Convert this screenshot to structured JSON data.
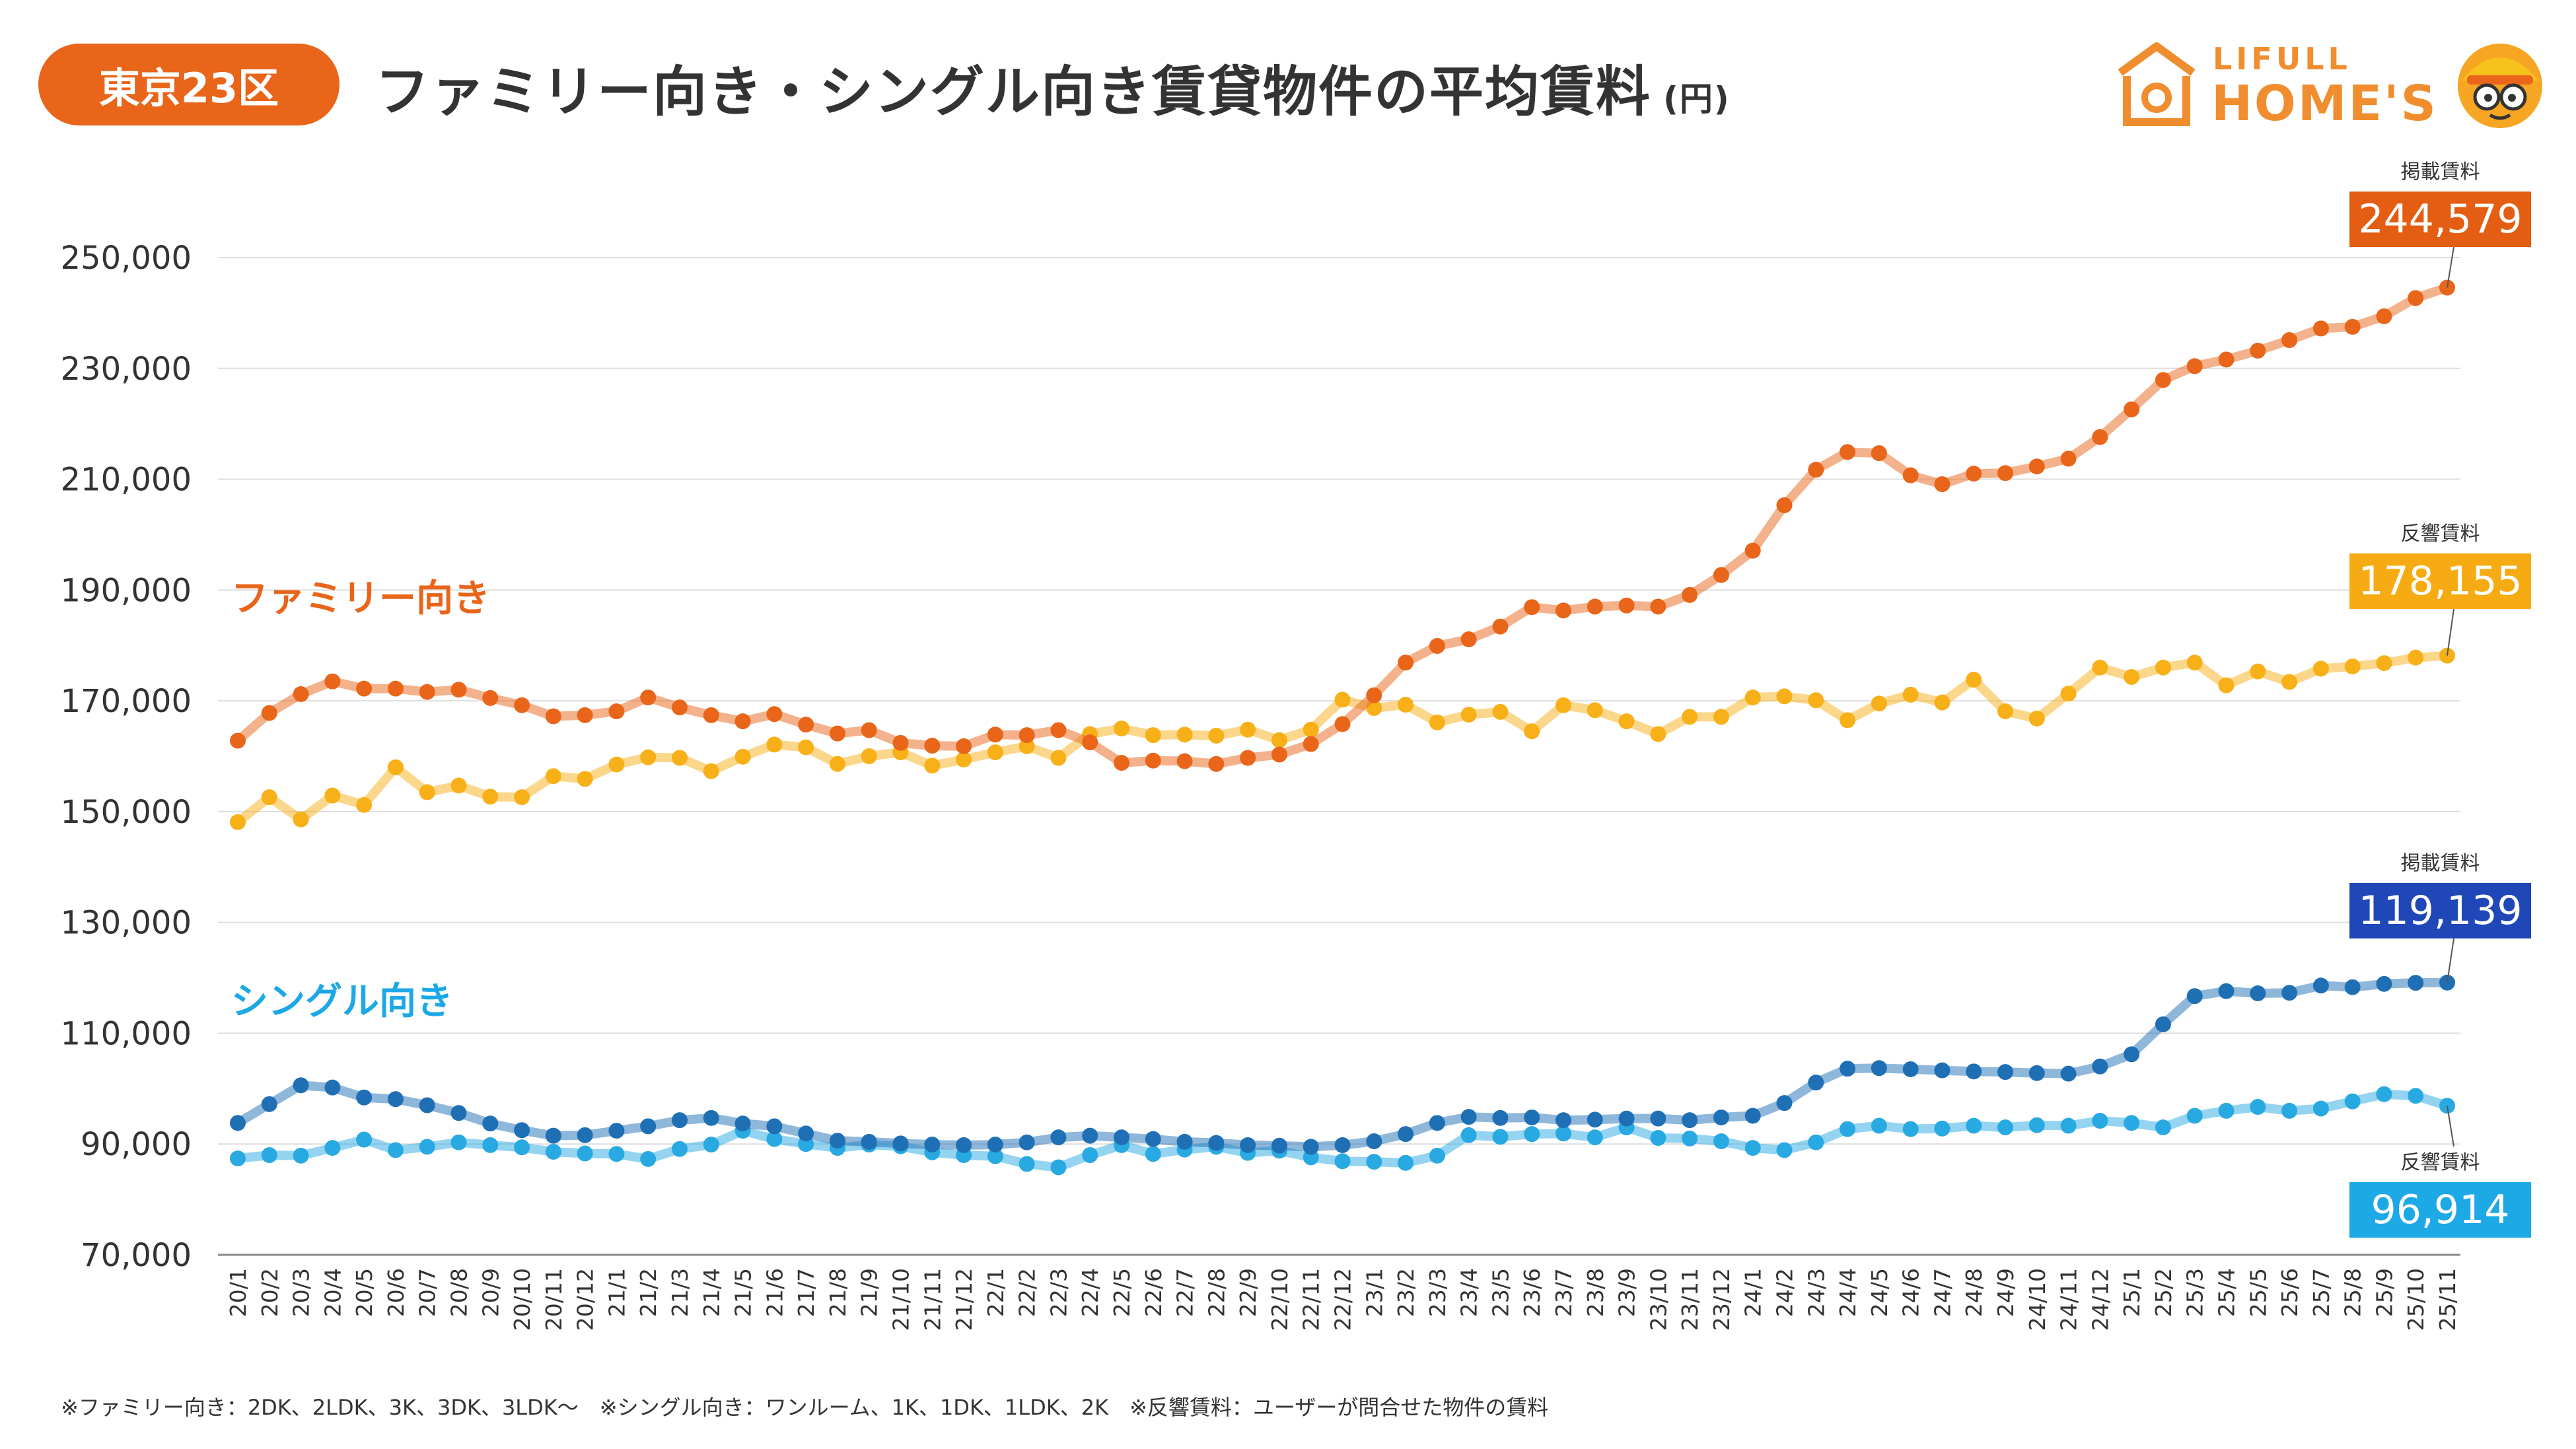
{
  "header": {
    "region": "東京23区",
    "title": "ファミリー向き・シングル向き賃貸物件の平均賃料",
    "unit": "(円)"
  },
  "logo": {
    "line1": "LIFULL",
    "line2": "HOME'S"
  },
  "footnote": "※ファミリー向き：2DK、2LDK、3K、3DK、3LDK～　※シングル向き：ワンルーム、1K、1DK、1LDK、2K　※反響賃料：ユーザーが問合せた物件の賃料",
  "colors": {
    "family_listed": "#e8651a",
    "family_inquiry": "#f8b019",
    "single_listed": "#1f6fb5",
    "single_inquiry": "#29a9e1",
    "badge_family_listed": "#e35d12",
    "badge_family_inquiry": "#f7ab12",
    "badge_single_listed": "#1f47b8",
    "badge_single_inquiry": "#1da8e6"
  },
  "chart_data": {
    "type": "line",
    "title": "ファミリー向き・シングル向き賃貸物件の平均賃料",
    "ylabel": "(円)",
    "ylim": [
      70000,
      250000
    ],
    "yticks": [
      "250,000",
      "230,000",
      "210,000",
      "190,000",
      "170,000",
      "150,000",
      "130,000",
      "110,000",
      "90,000",
      "70,000"
    ],
    "grid": true,
    "group_labels": {
      "family": "ファミリー向き",
      "single": "シングル向き"
    },
    "categories": [
      "20/1",
      "20/2",
      "20/3",
      "20/4",
      "20/5",
      "20/6",
      "20/7",
      "20/8",
      "20/9",
      "20/10",
      "20/11",
      "20/12",
      "21/1",
      "21/2",
      "21/3",
      "21/4",
      "21/5",
      "21/6",
      "21/7",
      "21/8",
      "21/9",
      "21/10",
      "21/11",
      "21/12",
      "22/1",
      "22/2",
      "22/3",
      "22/4",
      "22/5",
      "22/6",
      "22/7",
      "22/8",
      "22/9",
      "22/10",
      "22/11",
      "22/12",
      "23/1",
      "23/2",
      "23/3",
      "23/4",
      "23/5",
      "23/6",
      "23/7",
      "23/8",
      "23/9",
      "23/10",
      "23/11",
      "23/12",
      "24/1",
      "24/2",
      "24/3",
      "24/4",
      "24/5",
      "24/6",
      "24/7",
      "24/8",
      "24/9",
      "24/10",
      "24/11",
      "24/12",
      "25/1",
      "25/2",
      "25/3",
      "25/4",
      "25/5",
      "25/6",
      "25/7",
      "25/8",
      "25/9",
      "25/10",
      "25/11"
    ],
    "series": [
      {
        "key": "family_listed",
        "name": "掲載賃料",
        "group": "ファミリー向き",
        "badge_value": "244,579",
        "values": [
          162800,
          167800,
          171200,
          173500,
          172200,
          172200,
          171600,
          172000,
          170500,
          169200,
          167200,
          167400,
          168100,
          170600,
          168800,
          167400,
          166300,
          167600,
          165700,
          164100,
          164700,
          162400,
          161900,
          161800,
          163900,
          163800,
          164700,
          162500,
          158800,
          159200,
          159100,
          158600,
          159700,
          160300,
          162200,
          165800,
          171000,
          176900,
          179900,
          181100,
          183400,
          186900,
          186300,
          187000,
          187200,
          187000,
          189100,
          192700,
          197100,
          205300,
          211700,
          214900,
          214700,
          210700,
          209100,
          211000,
          211100,
          212300,
          213700,
          217600,
          222600,
          227900,
          230400,
          231600,
          233200,
          235100,
          237200,
          237500,
          239400,
          242700,
          244579
        ]
      },
      {
        "key": "family_inquiry",
        "name": "反響賃料",
        "group": "ファミリー向き",
        "badge_value": "178,155",
        "values": [
          148100,
          152600,
          148600,
          152900,
          151200,
          158000,
          153500,
          154700,
          152700,
          152600,
          156400,
          155900,
          158500,
          159800,
          159700,
          157300,
          159900,
          162100,
          161600,
          158600,
          160000,
          160700,
          158300,
          159400,
          160700,
          161800,
          159700,
          164000,
          165000,
          163800,
          163900,
          163700,
          164800,
          162900,
          164800,
          170200,
          168700,
          169300,
          166100,
          167500,
          168000,
          164500,
          169200,
          168300,
          166300,
          164000,
          167100,
          167100,
          170600,
          170800,
          170100,
          166500,
          169500,
          171100,
          169700,
          173800,
          168100,
          166800,
          171300,
          176000,
          174300,
          176000,
          176900,
          172800,
          175300,
          173400,
          175800,
          176200,
          176800,
          177800,
          178155
        ]
      },
      {
        "key": "single_listed",
        "name": "掲載賃料",
        "group": "シングル向き",
        "badge_value": "119,139",
        "values": [
          93800,
          97200,
          100600,
          100200,
          98400,
          98100,
          97000,
          95600,
          93700,
          92500,
          91500,
          91600,
          92400,
          93200,
          94300,
          94700,
          93700,
          93200,
          91900,
          90600,
          90400,
          90100,
          89900,
          89800,
          89900,
          90300,
          91200,
          91500,
          91200,
          90900,
          90400,
          90200,
          89800,
          89700,
          89500,
          89800,
          90500,
          91800,
          93800,
          94900,
          94700,
          94800,
          94300,
          94400,
          94600,
          94600,
          94300,
          94800,
          95100,
          97400,
          101100,
          103600,
          103700,
          103500,
          103300,
          103100,
          103000,
          102800,
          102700,
          104000,
          106200,
          111600,
          116700,
          117600,
          117200,
          117300,
          118600,
          118300,
          118900,
          119100,
          119139
        ]
      },
      {
        "key": "single_inquiry",
        "name": "反響賃料",
        "group": "シングル向き",
        "badge_value": "96,914",
        "values": [
          87400,
          88000,
          87900,
          89300,
          90800,
          88900,
          89500,
          90300,
          89800,
          89400,
          88600,
          88300,
          88200,
          87300,
          89100,
          89900,
          92400,
          90900,
          90000,
          89300,
          89900,
          89600,
          88500,
          88000,
          87800,
          86400,
          85800,
          88000,
          89800,
          88200,
          89000,
          89500,
          88400,
          88800,
          87600,
          86900,
          86800,
          86600,
          87900,
          91600,
          91300,
          91800,
          91900,
          91200,
          93000,
          91100,
          91000,
          90500,
          89300,
          88900,
          90300,
          92700,
          93300,
          92700,
          92800,
          93300,
          93000,
          93400,
          93300,
          94200,
          93800,
          93000,
          95100,
          96000,
          96700,
          96000,
          96400,
          97700,
          99000,
          98700,
          96914
        ]
      }
    ]
  }
}
